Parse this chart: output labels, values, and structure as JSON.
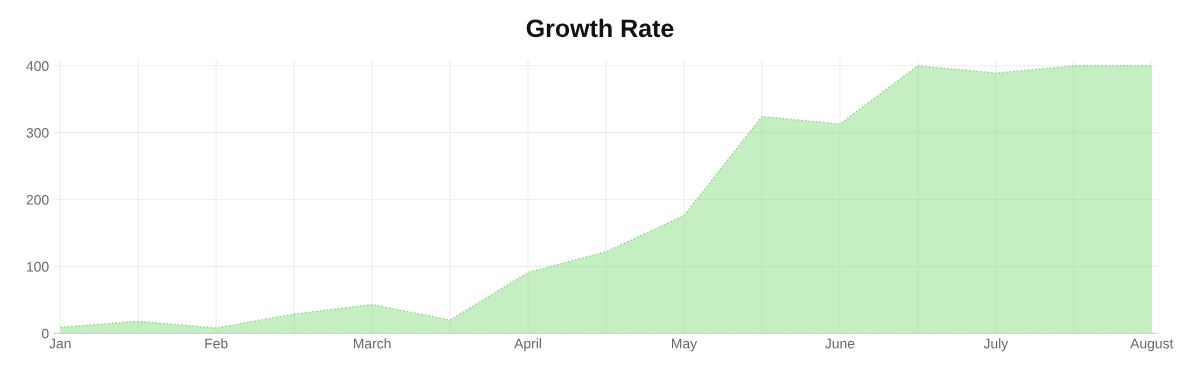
{
  "chart_data": {
    "type": "area",
    "title": "Growth Rate",
    "categories": [
      "Jan",
      null,
      "Feb",
      null,
      "March",
      null,
      "April",
      null,
      "May",
      null,
      "June",
      null,
      "July",
      null,
      "August"
    ],
    "series": [
      {
        "color": "#7fdc78",
        "values": [
          9,
          18,
          8,
          29,
          43,
          20,
          91,
          122,
          176,
          324,
          313,
          400,
          389,
          400,
          400
        ]
      }
    ],
    "ylim": [
      0,
      410
    ],
    "yticks": [
      0,
      100,
      200,
      300,
      400
    ],
    "grid": true,
    "line_style": "dotted",
    "legend": false
  }
}
